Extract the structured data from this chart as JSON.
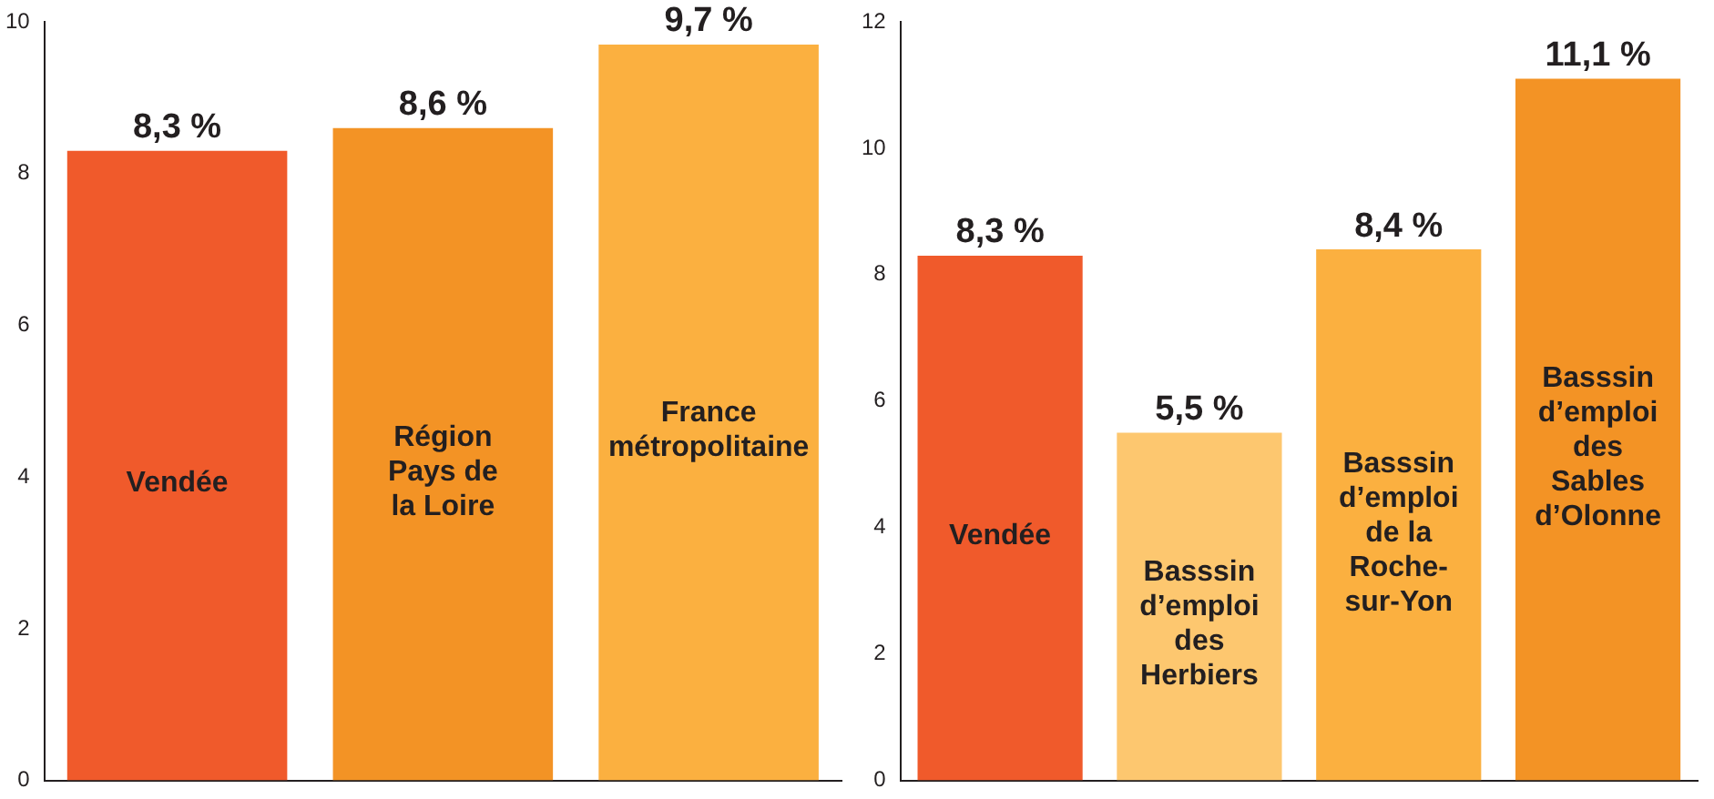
{
  "chart_data": [
    {
      "type": "bar",
      "categories": [
        "Vendée",
        "Région\nPays de\nla Loire",
        "France\nmétropolitaine"
      ],
      "values": [
        8.3,
        8.6,
        9.7
      ],
      "colors": [
        "#f05a2b",
        "#f39325",
        "#fbb040"
      ],
      "value_labels": [
        "8,3 %",
        "8,6 %",
        "9,7 %"
      ],
      "ylim": [
        0,
        10
      ],
      "yticks": [
        0,
        2,
        4,
        6,
        8,
        10
      ],
      "grid": false,
      "legend": false,
      "tick_labels": "y"
    },
    {
      "type": "bar",
      "categories": [
        "Vendée",
        "Basssin\nd’emploi\ndes\nHerbiers",
        "Basssin\nd’emploi\nde la\nRoche-\nsur-Yon",
        "Basssin\nd’emploi\ndes\nSables\nd’Olonne"
      ],
      "values": [
        8.3,
        5.5,
        8.4,
        11.1
      ],
      "colors": [
        "#f05a2b",
        "#fdc76f",
        "#fbb040",
        "#f39325"
      ],
      "value_labels": [
        "8,3 %",
        "5,5 %",
        "8,4 %",
        "11,1 %"
      ],
      "ylim": [
        0,
        12
      ],
      "yticks": [
        0,
        2,
        4,
        6,
        8,
        10,
        12
      ],
      "grid": false,
      "legend": false,
      "tick_labels": "y"
    }
  ]
}
